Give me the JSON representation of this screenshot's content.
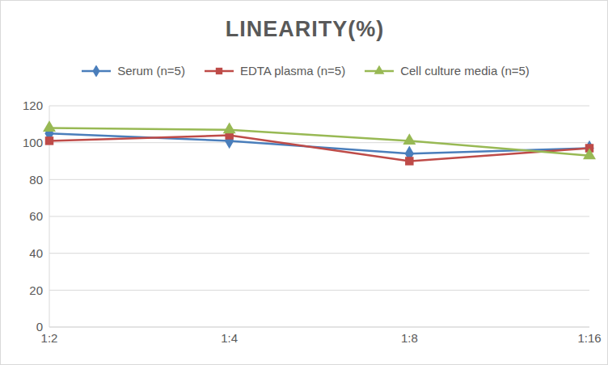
{
  "chart_data": {
    "type": "line",
    "title": "LINEARITY(%)",
    "categories": [
      "1:2",
      "1:4",
      "1:8",
      "1:16"
    ],
    "series": [
      {
        "name": "Serum (n=5)",
        "color": "#4a7ebb",
        "marker": "diamond",
        "values": [
          105,
          101,
          94,
          97
        ]
      },
      {
        "name": "EDTA plasma (n=5)",
        "color": "#be4b48",
        "marker": "square",
        "values": [
          101,
          104,
          90,
          97
        ]
      },
      {
        "name": "Cell culture media (n=5)",
        "color": "#98b954",
        "marker": "triangle",
        "values": [
          108,
          107,
          101,
          93
        ]
      }
    ],
    "ylim": [
      0,
      120
    ],
    "yticks": [
      0,
      20,
      40,
      60,
      80,
      100,
      120
    ],
    "grid": true,
    "legend": "top"
  }
}
